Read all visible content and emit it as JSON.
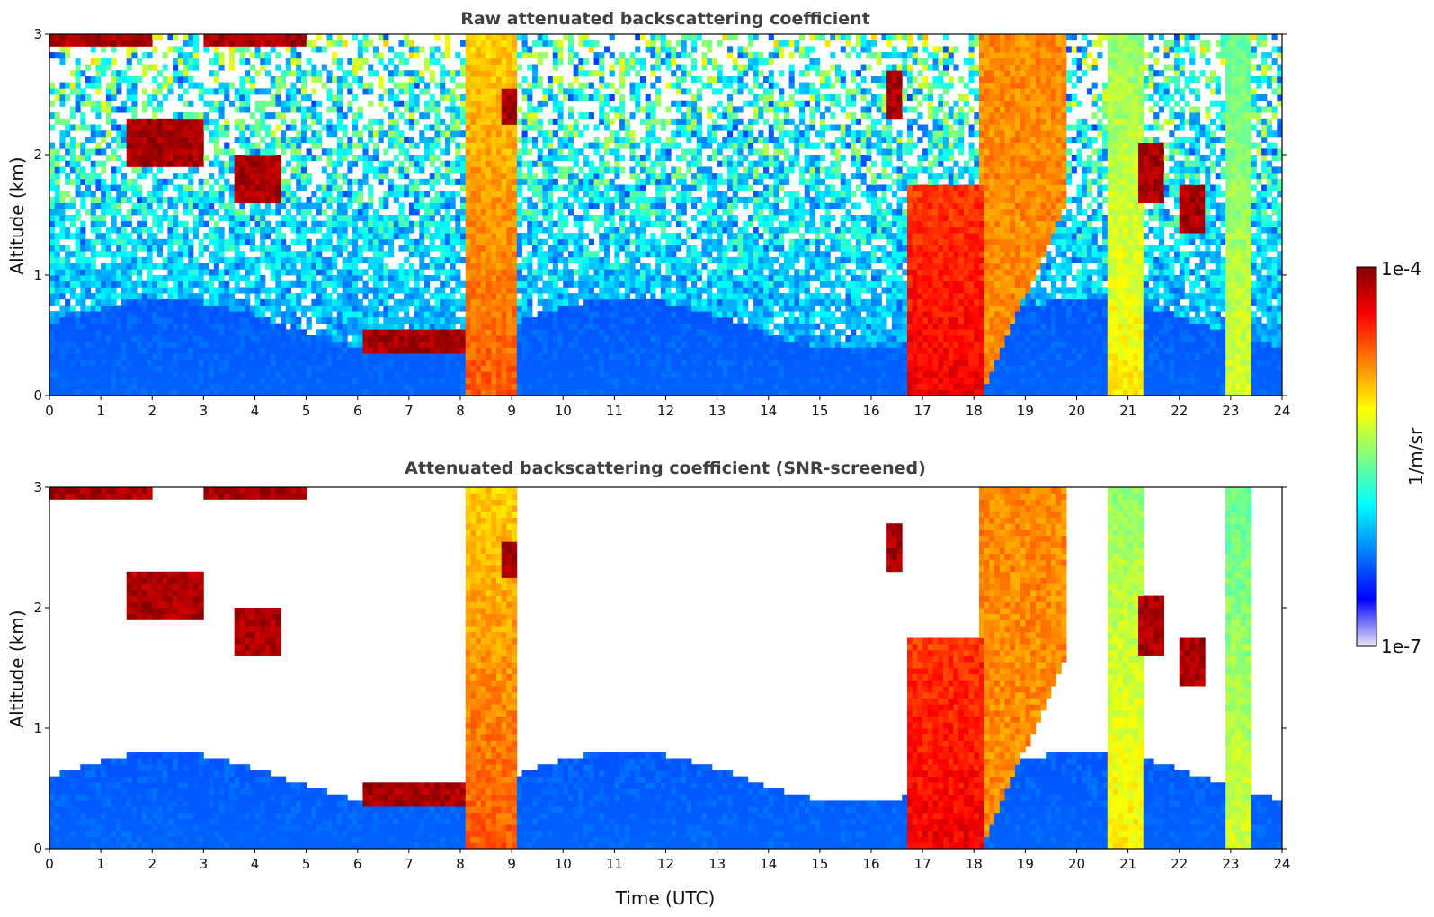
{
  "chart_data": [
    {
      "type": "heatmap",
      "title": "Raw attenuated backscattering coefficient",
      "xlabel": "",
      "ylabel": "Altitude (km)",
      "xlim": [
        0,
        24
      ],
      "ylim": [
        0,
        3
      ],
      "x_ticks": [
        0,
        1,
        2,
        3,
        4,
        5,
        6,
        7,
        8,
        9,
        10,
        11,
        12,
        13,
        14,
        15,
        16,
        17,
        18,
        19,
        20,
        21,
        22,
        23,
        24
      ],
      "y_ticks": [
        0,
        1,
        2,
        3
      ],
      "screened": false
    },
    {
      "type": "heatmap",
      "title": "Attenuated backscattering coefficient (SNR-screened)",
      "xlabel": "Time (UTC)",
      "ylabel": "Altitude (km)",
      "xlim": [
        0,
        24
      ],
      "ylim": [
        0,
        3
      ],
      "x_ticks": [
        0,
        1,
        2,
        3,
        4,
        5,
        6,
        7,
        8,
        9,
        10,
        11,
        12,
        13,
        14,
        15,
        16,
        17,
        18,
        19,
        20,
        21,
        22,
        23,
        24
      ],
      "y_ticks": [
        0,
        1,
        2,
        3
      ],
      "screened": true
    }
  ],
  "colorbar": {
    "label": "1/m/sr",
    "min_label": "1e-7",
    "max_label": "1e-4",
    "scale": "log",
    "range": [
      1e-07,
      0.0001
    ],
    "colormap": [
      "#e8e8f8",
      "#0000ff",
      "#0080ff",
      "#00ffff",
      "#80ff80",
      "#ffff00",
      "#ff8000",
      "#ff0000",
      "#800000"
    ]
  },
  "features": [
    {
      "kind": "low_layer",
      "t0": 0,
      "t1": 24,
      "z_top": 0.7
    },
    {
      "kind": "aerosol_column",
      "t0": 8.05,
      "t1": 9.05,
      "z_top": 3.0,
      "intensity": 0.75
    },
    {
      "kind": "aerosol_column",
      "t0": 16.75,
      "t1": 18.15,
      "z_top": 1.75,
      "intensity": 0.85
    },
    {
      "kind": "plume",
      "t0": 18.15,
      "t1": 19.8,
      "z_bottom": 0.0,
      "z_top": 3.0,
      "intensity": 0.7
    },
    {
      "kind": "aerosol_column",
      "t0": 20.55,
      "t1": 21.3,
      "z_top": 3.0,
      "intensity": 0.6
    },
    {
      "kind": "aerosol_column",
      "t0": 22.95,
      "t1": 23.35,
      "z_top": 3.0,
      "intensity": 0.55
    },
    {
      "kind": "cloud",
      "t0": 1.5,
      "t1": 3.0,
      "z": 2.1,
      "dz": 0.18,
      "intensity": 1.0
    },
    {
      "kind": "cloud",
      "t0": 3.6,
      "t1": 4.5,
      "z": 1.8,
      "dz": 0.2,
      "intensity": 1.0
    },
    {
      "kind": "cloud",
      "t0": 6.1,
      "t1": 8.1,
      "z": 0.45,
      "dz": 0.1,
      "intensity": 1.0
    },
    {
      "kind": "cloud",
      "t0": 0.0,
      "t1": 2.0,
      "z": 2.95,
      "dz": 0.06,
      "intensity": 1.0
    },
    {
      "kind": "cloud",
      "t0": 3.0,
      "t1": 5.0,
      "z": 2.95,
      "dz": 0.07,
      "intensity": 1.0
    },
    {
      "kind": "cloud",
      "t0": 8.8,
      "t1": 9.1,
      "z": 2.4,
      "dz": 0.15,
      "intensity": 1.0
    },
    {
      "kind": "cloud",
      "t0": 16.3,
      "t1": 16.55,
      "z": 2.5,
      "dz": 0.2,
      "intensity": 1.0
    },
    {
      "kind": "cloud",
      "t0": 21.2,
      "t1": 21.7,
      "z": 1.85,
      "dz": 0.25,
      "intensity": 1.0
    },
    {
      "kind": "cloud",
      "t0": 22.0,
      "t1": 22.5,
      "z": 1.55,
      "dz": 0.2,
      "intensity": 1.0
    }
  ]
}
